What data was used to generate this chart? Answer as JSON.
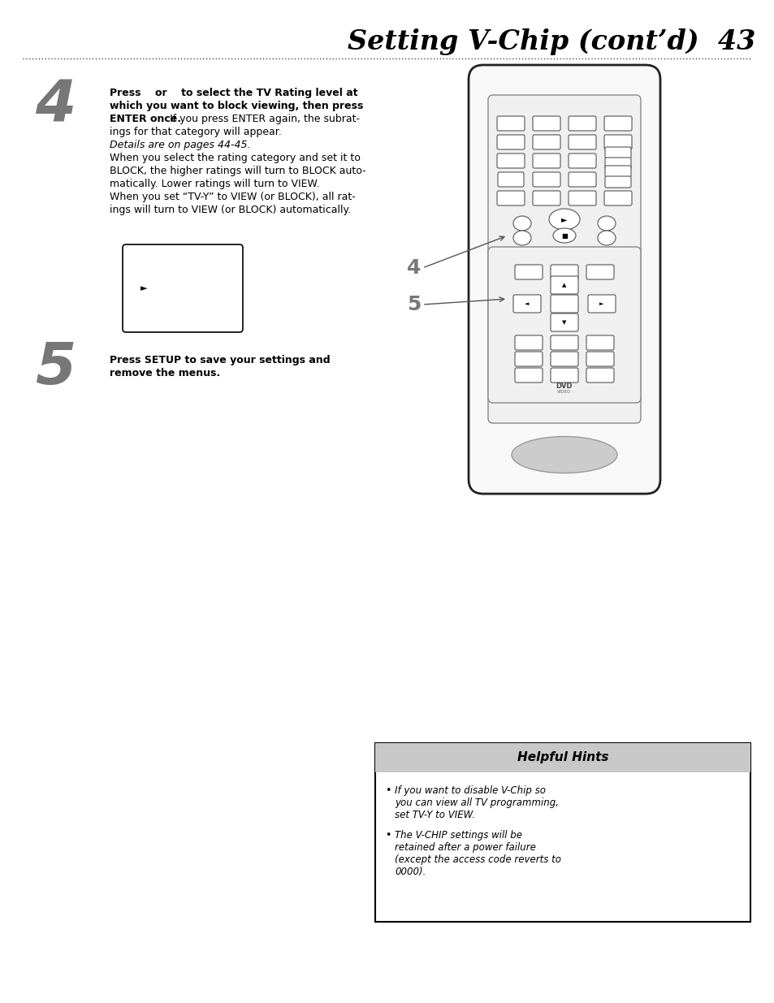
{
  "title": "Setting V-Chip (cont’d)  43",
  "background_color": "#ffffff",
  "hint_title": "Helpful Hints",
  "hint_bullet1_lines": [
    "If you want to disable V-Chip so",
    "you can view all TV programming,",
    "set TV-Y to VIEW."
  ],
  "hint_bullet2_lines": [
    "The V-CHIP settings will be",
    "retained after a power failure",
    "(except the access code reverts to",
    "0000)."
  ]
}
